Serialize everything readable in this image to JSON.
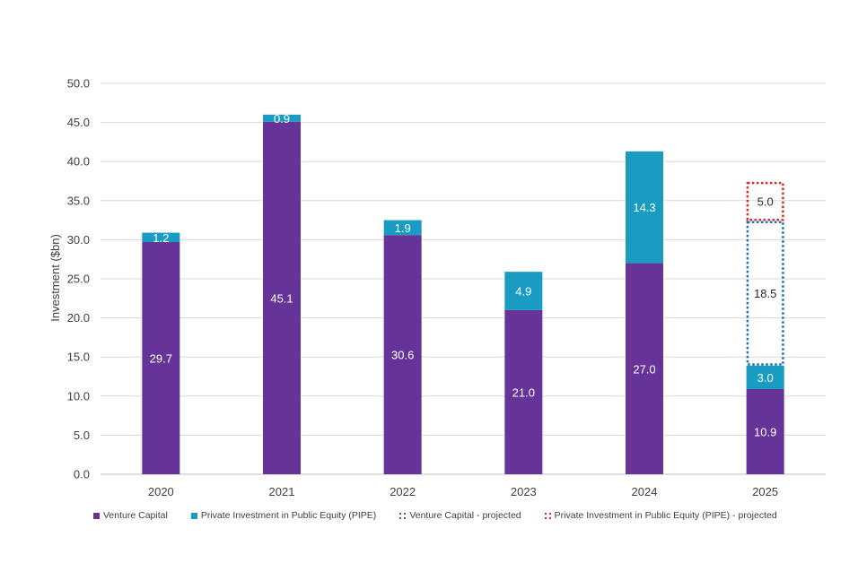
{
  "chart_data": {
    "type": "bar",
    "stacked": true,
    "categories": [
      "2020",
      "2021",
      "2022",
      "2023",
      "2024",
      "2025"
    ],
    "series": [
      {
        "name": "Venture Capital",
        "values": [
          29.7,
          45.1,
          30.6,
          21.0,
          27.0,
          10.9
        ],
        "color": "#663399",
        "style": "solid"
      },
      {
        "name": "Private Investment in Public Equity (PIPE)",
        "values": [
          1.2,
          0.9,
          1.9,
          4.9,
          14.3,
          3.0
        ],
        "color": "#1a9bc2",
        "style": "solid"
      },
      {
        "name": "Venture Capital - projected",
        "values": [
          null,
          null,
          null,
          null,
          null,
          18.5
        ],
        "color": "#1f6fb4",
        "style": "dotted"
      },
      {
        "name": "Private Investment in Public Equity (PIPE) - projected",
        "values": [
          null,
          null,
          null,
          null,
          null,
          5.0
        ],
        "color": "#d62b2b",
        "style": "dotted"
      }
    ],
    "data_labels": [
      [
        "29.7",
        "45.1",
        "30.6",
        "21.0",
        "27.0",
        "10.9"
      ],
      [
        "1.2",
        "0.9",
        "1.9",
        "4.9",
        "14.3",
        "3.0"
      ],
      [
        "",
        "",
        "",
        "",
        "",
        "18.5"
      ],
      [
        "",
        "",
        "",
        "",
        "",
        "5.0"
      ]
    ],
    "ylabel": "Investment ($bn)",
    "xlabel": "",
    "ylim": [
      0,
      50
    ],
    "yticks": [
      "0.0",
      "5.0",
      "10.0",
      "15.0",
      "20.0",
      "25.0",
      "30.0",
      "35.0",
      "40.0",
      "45.0",
      "50.0"
    ],
    "grid": true,
    "legend_position": "bottom"
  },
  "legend": {
    "items": [
      {
        "label": "Venture Capital"
      },
      {
        "label": "Private Investment in Public Equity (PIPE)"
      },
      {
        "label": "Venture Capital - projected"
      },
      {
        "label": "Private Investment in Public Equity (PIPE) - projected"
      }
    ]
  }
}
